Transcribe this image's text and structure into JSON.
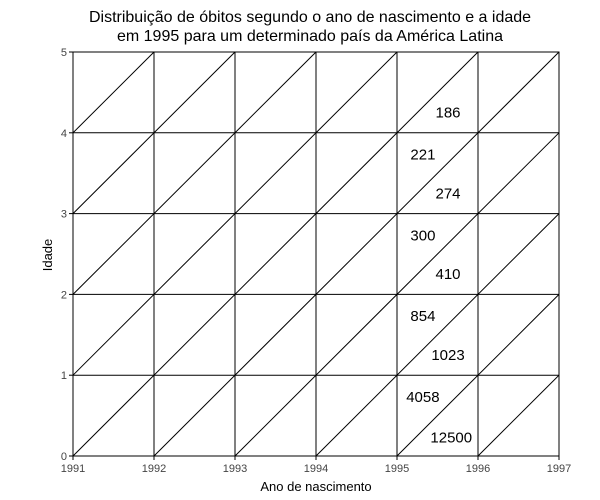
{
  "chart_data": {
    "type": "lexis-diagram",
    "title_line1": "Distribuição de óbitos segundo o ano de nascimento e a idade",
    "title_line2": "em 1995 para um determinado país da América Latina",
    "xlabel": "Ano de nascimento",
    "ylabel": "Idade",
    "xlim": [
      1991,
      1997
    ],
    "ylim": [
      0,
      5
    ],
    "x_ticks": [
      "1991",
      "1992",
      "1993",
      "1994",
      "1995",
      "1996",
      "1997"
    ],
    "y_ticks": [
      "0",
      "1",
      "2",
      "3",
      "4",
      "5"
    ],
    "grid": true,
    "lifelines": true,
    "values": [
      {
        "label": "12500",
        "x": 1995.67,
        "y": 0.23
      },
      {
        "label": "4058",
        "x": 1995.32,
        "y": 0.73
      },
      {
        "label": "1023",
        "x": 1995.63,
        "y": 1.25
      },
      {
        "label": "854",
        "x": 1995.32,
        "y": 1.73
      },
      {
        "label": "410",
        "x": 1995.63,
        "y": 2.25
      },
      {
        "label": "300",
        "x": 1995.32,
        "y": 2.73
      },
      {
        "label": "274",
        "x": 1995.63,
        "y": 3.25
      },
      {
        "label": "221",
        "x": 1995.32,
        "y": 3.73
      },
      {
        "label": "186",
        "x": 1995.63,
        "y": 4.25
      }
    ]
  }
}
